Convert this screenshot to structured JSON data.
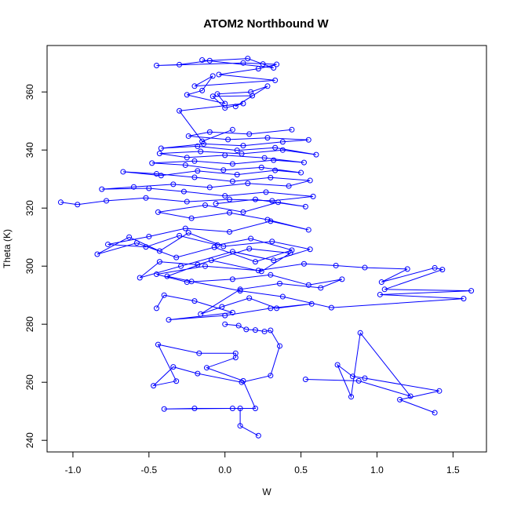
{
  "chart_data": {
    "type": "line",
    "title": "ATOM2 Northbound W",
    "xlabel": "W",
    "ylabel": "Theta (K)",
    "xlim": [
      -1.17,
      1.72
    ],
    "ylim": [
      236,
      376
    ],
    "x_ticks": [
      -1.0,
      -0.5,
      0.0,
      0.5,
      1.0,
      1.5
    ],
    "x_tick_labels": [
      "-1.0",
      "-0.5",
      "0.0",
      "0.5",
      "1.0",
      "1.5"
    ],
    "y_ticks": [
      240,
      260,
      280,
      300,
      320,
      340,
      360
    ],
    "y_tick_labels": [
      "240",
      "260",
      "280",
      "300",
      "320",
      "340",
      "360"
    ],
    "grid": false,
    "legend": "none",
    "marker": "open-circle",
    "color": "#0000ff",
    "series": [
      {
        "x": [
          0.22,
          0.1,
          0.1,
          -0.2,
          -0.4,
          0.05,
          0.2,
          0.12,
          -0.12,
          0.07,
          0.07,
          -0.17,
          -0.44,
          -0.32,
          -0.47,
          -0.34,
          -0.18,
          0.11,
          0.3,
          0.36,
          0.3,
          0.26,
          0.2,
          0.14,
          0.09,
          0.0
        ],
        "y": [
          241.6,
          245,
          251,
          251,
          250.8,
          251,
          251,
          260.5,
          265,
          268.5,
          270,
          270,
          273,
          260.4,
          258.8,
          265.3,
          263,
          260,
          262.3,
          272.5,
          277.9,
          277.5,
          278,
          278.2,
          279.5,
          280
        ]
      },
      {
        "x": [
          1.38,
          1.15,
          1.41,
          0.92,
          0.84,
          0.74,
          0.83,
          0.89,
          1.22,
          0.88,
          0.53
        ],
        "y": [
          249.5,
          254,
          257,
          261.4,
          262,
          266,
          255,
          277,
          255.2,
          260.5,
          261
        ]
      },
      {
        "x": [
          -0.45,
          -0.4,
          -0.2,
          0.05,
          -0.37,
          0.0,
          0.3,
          0.57,
          0.34,
          0.16,
          -0.02,
          -0.16,
          0.1,
          0.36,
          0.63,
          0.77,
          0.55,
          0.3,
          0.05,
          -0.25,
          -0.45,
          -0.13,
          0.22,
          0.52,
          0.73,
          0.92,
          1.2,
          1.03,
          1.38,
          1.43,
          1.05,
          1.62,
          1.02,
          1.57,
          0.7,
          0.38,
          0.1,
          -0.22,
          -0.38,
          -0.09,
          0.24,
          0.43,
          0.16,
          -0.18,
          -0.43,
          -0.56,
          -0.29,
          0.05,
          0.32,
          0.56,
          0.31,
          -0.01,
          -0.24,
          -0.43,
          -0.63,
          -0.84,
          -0.58,
          -0.32,
          -0.07,
          0.2,
          0.44,
          0.17,
          -0.05,
          -0.3,
          -0.52,
          -0.77,
          -0.5,
          -0.26,
          0.03,
          0.3,
          0.55,
          0.28,
          0.03,
          -0.22,
          -0.44,
          -0.13,
          0.12,
          0.35,
          0.53,
          0.2,
          -0.06
        ],
        "y": [
          285.5,
          290,
          288,
          284,
          281.5,
          283,
          285.5,
          287,
          285.5,
          289,
          286,
          283.5,
          292,
          294,
          292.5,
          295.5,
          293.5,
          297,
          295.5,
          294.5,
          297.2,
          300,
          298.5,
          300.8,
          300.2,
          299.5,
          299,
          294.5,
          299.4,
          298.8,
          292,
          291.5,
          290.2,
          288.8,
          285.7,
          289.5,
          291.5,
          294.7,
          296.5,
          302,
          298.2,
          304.5,
          306,
          300.5,
          301.5,
          296,
          300,
          305,
          302,
          305.8,
          308.5,
          306.8,
          311.5,
          305.2,
          310,
          304.1,
          308,
          303,
          306.5,
          301.5,
          305.5,
          309.5,
          307.3,
          310.5,
          306.6,
          307.5,
          310.2,
          313,
          311.8,
          315.5,
          312.5,
          316,
          318.4,
          316.5,
          318.6,
          321,
          318.6,
          322,
          320.5,
          323,
          321.5
        ]
      },
      {
        "x": [
          -1.08,
          -0.97,
          -0.78,
          -0.52,
          -0.25,
          0.03,
          0.31,
          0.58,
          0.27,
          0.0,
          -0.27,
          -0.5,
          -0.81,
          -0.6,
          -0.34,
          -0.1,
          0.15,
          0.42,
          0.56,
          0.3,
          0.05,
          -0.2,
          -0.45,
          -0.67,
          -0.42,
          -0.18,
          0.08,
          0.33,
          0.5,
          0.24,
          -0.01,
          -0.26,
          -0.48,
          -0.2,
          0.05,
          0.32,
          0.52,
          0.26,
          0.0,
          -0.25,
          -0.43,
          -0.16,
          0.11,
          0.38,
          0.6,
          0.33,
          0.08,
          -0.18,
          -0.42,
          -0.14,
          0.12,
          0.38,
          0.55,
          0.28,
          0.02,
          -0.24,
          -0.1,
          0.16,
          0.44
        ],
        "y": [
          322,
          321.2,
          322.5,
          323.5,
          322.2,
          323,
          322.5,
          324,
          325.5,
          324.2,
          325.7,
          326.8,
          326.5,
          327.3,
          328.2,
          327.1,
          328.5,
          327.6,
          329.5,
          330.5,
          329.2,
          330.6,
          331.8,
          332.5,
          331.2,
          332.8,
          331.5,
          333,
          332.2,
          334,
          333.1,
          334.8,
          335.5,
          336.2,
          335.2,
          336.5,
          335.7,
          337.3,
          338.2,
          337.4,
          338.8,
          339.5,
          338.7,
          340,
          338.4,
          340.8,
          339.9,
          341.3,
          340.6,
          342.1,
          341.5,
          342.8,
          343.5,
          344.2,
          343.6,
          344.8,
          346.2,
          345.5,
          347
        ]
      },
      {
        "x": [
          0.05,
          -0.15,
          -0.3,
          0.12,
          0.0,
          -0.08,
          0.18,
          0.07,
          0.28,
          0.17,
          -0.05,
          0.0,
          -0.25,
          -0.15,
          -0.08,
          -0.2,
          0.33,
          -0.04,
          0.22,
          0.34,
          0.12,
          -0.45,
          -0.3,
          -0.1,
          0.15,
          0.25,
          0.32,
          -0.15
        ],
        "y": [
          347,
          343,
          353.5,
          356,
          354.5,
          358.5,
          358.7,
          355,
          362,
          360,
          359.3,
          356,
          359,
          360.5,
          365.5,
          362,
          364,
          366,
          368,
          369.5,
          370,
          369.1,
          369.4,
          370.8,
          371.5,
          369.6,
          368.3,
          371
        ]
      }
    ]
  }
}
